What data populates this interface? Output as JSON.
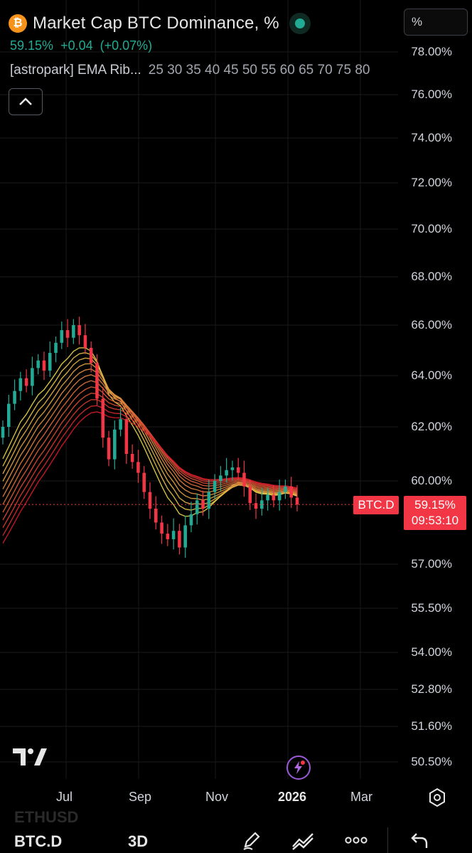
{
  "header": {
    "title": "Market Cap BTC Dominance, %",
    "last": "59.15%",
    "change": "+0.04",
    "change_pct": "(+0.07%)",
    "indicator_name": "[astropark] EMA Rib...",
    "indicator_params": "25 30 35 40 45 50 55 60 65 70 75 80",
    "scale_button": "%"
  },
  "price_scale": {
    "labels": [
      {
        "text": "78.00%",
        "value": 78.0
      },
      {
        "text": "76.00%",
        "value": 76.0
      },
      {
        "text": "74.00%",
        "value": 74.0
      },
      {
        "text": "72.00%",
        "value": 72.0
      },
      {
        "text": "70.00%",
        "value": 70.0
      },
      {
        "text": "68.00%",
        "value": 68.0
      },
      {
        "text": "66.00%",
        "value": 66.0
      },
      {
        "text": "64.00%",
        "value": 64.0
      },
      {
        "text": "62.00%",
        "value": 62.0
      },
      {
        "text": "60.00%",
        "value": 60.0
      },
      {
        "text": "57.00%",
        "value": 57.0
      },
      {
        "text": "55.50%",
        "value": 55.5
      },
      {
        "text": "54.00%",
        "value": 54.0
      },
      {
        "text": "52.80%",
        "value": 52.8
      },
      {
        "text": "51.60%",
        "value": 51.6
      },
      {
        "text": "50.50%",
        "value": 50.5
      }
    ]
  },
  "badge": {
    "symbol": "BTC.D",
    "price": "59.15%",
    "countdown": "09:53:10"
  },
  "time_axis": {
    "labels": [
      {
        "text": "Jul",
        "bold": false
      },
      {
        "text": "Sep",
        "bold": false
      },
      {
        "text": "Nov",
        "bold": false
      },
      {
        "text": "2026",
        "bold": true
      },
      {
        "text": "Mar",
        "bold": false
      }
    ]
  },
  "colors": {
    "up": "#22ab94",
    "down": "#f23645",
    "background": "#000000",
    "grid": "#1a1a1a",
    "ribbon_fast": "#e8d44d",
    "ribbon_slow": "#d11a2a"
  },
  "watermark": "ETHUSD",
  "toolbar": {
    "symbol": "BTC.D",
    "interval": "3D",
    "icons": [
      "draw-icon",
      "indicators-icon",
      "more-icon",
      "undo-icon"
    ]
  },
  "chart_data": {
    "type": "candlestick",
    "symbol": "BTC.D",
    "interval": "3D",
    "last": 59.15,
    "ylim": [
      50.5,
      78.0
    ],
    "x_labels": [
      "Jul",
      "Sep",
      "Nov",
      "2026",
      "Mar"
    ],
    "closes": [
      62.0,
      62.9,
      63.4,
      63.9,
      63.6,
      64.3,
      64.6,
      64.2,
      64.9,
      65.3,
      65.8,
      65.5,
      66.0,
      65.6,
      65.1,
      64.5,
      63.1,
      61.6,
      60.8,
      61.9,
      62.3,
      61.0,
      60.7,
      60.3,
      59.6,
      59.0,
      58.5,
      58.1,
      57.9,
      58.2,
      57.6,
      58.4,
      58.8,
      59.3,
      59.0,
      59.6,
      60.0,
      60.2,
      60.4,
      60.5,
      60.3,
      59.8,
      59.2,
      59.0,
      59.3,
      59.5,
      59.3,
      59.6,
      59.8,
      59.4,
      59.15
    ],
    "ribbon_ema_lengths": [
      25,
      30,
      35,
      40,
      45,
      50,
      55,
      60,
      65,
      70,
      75,
      80
    ]
  }
}
